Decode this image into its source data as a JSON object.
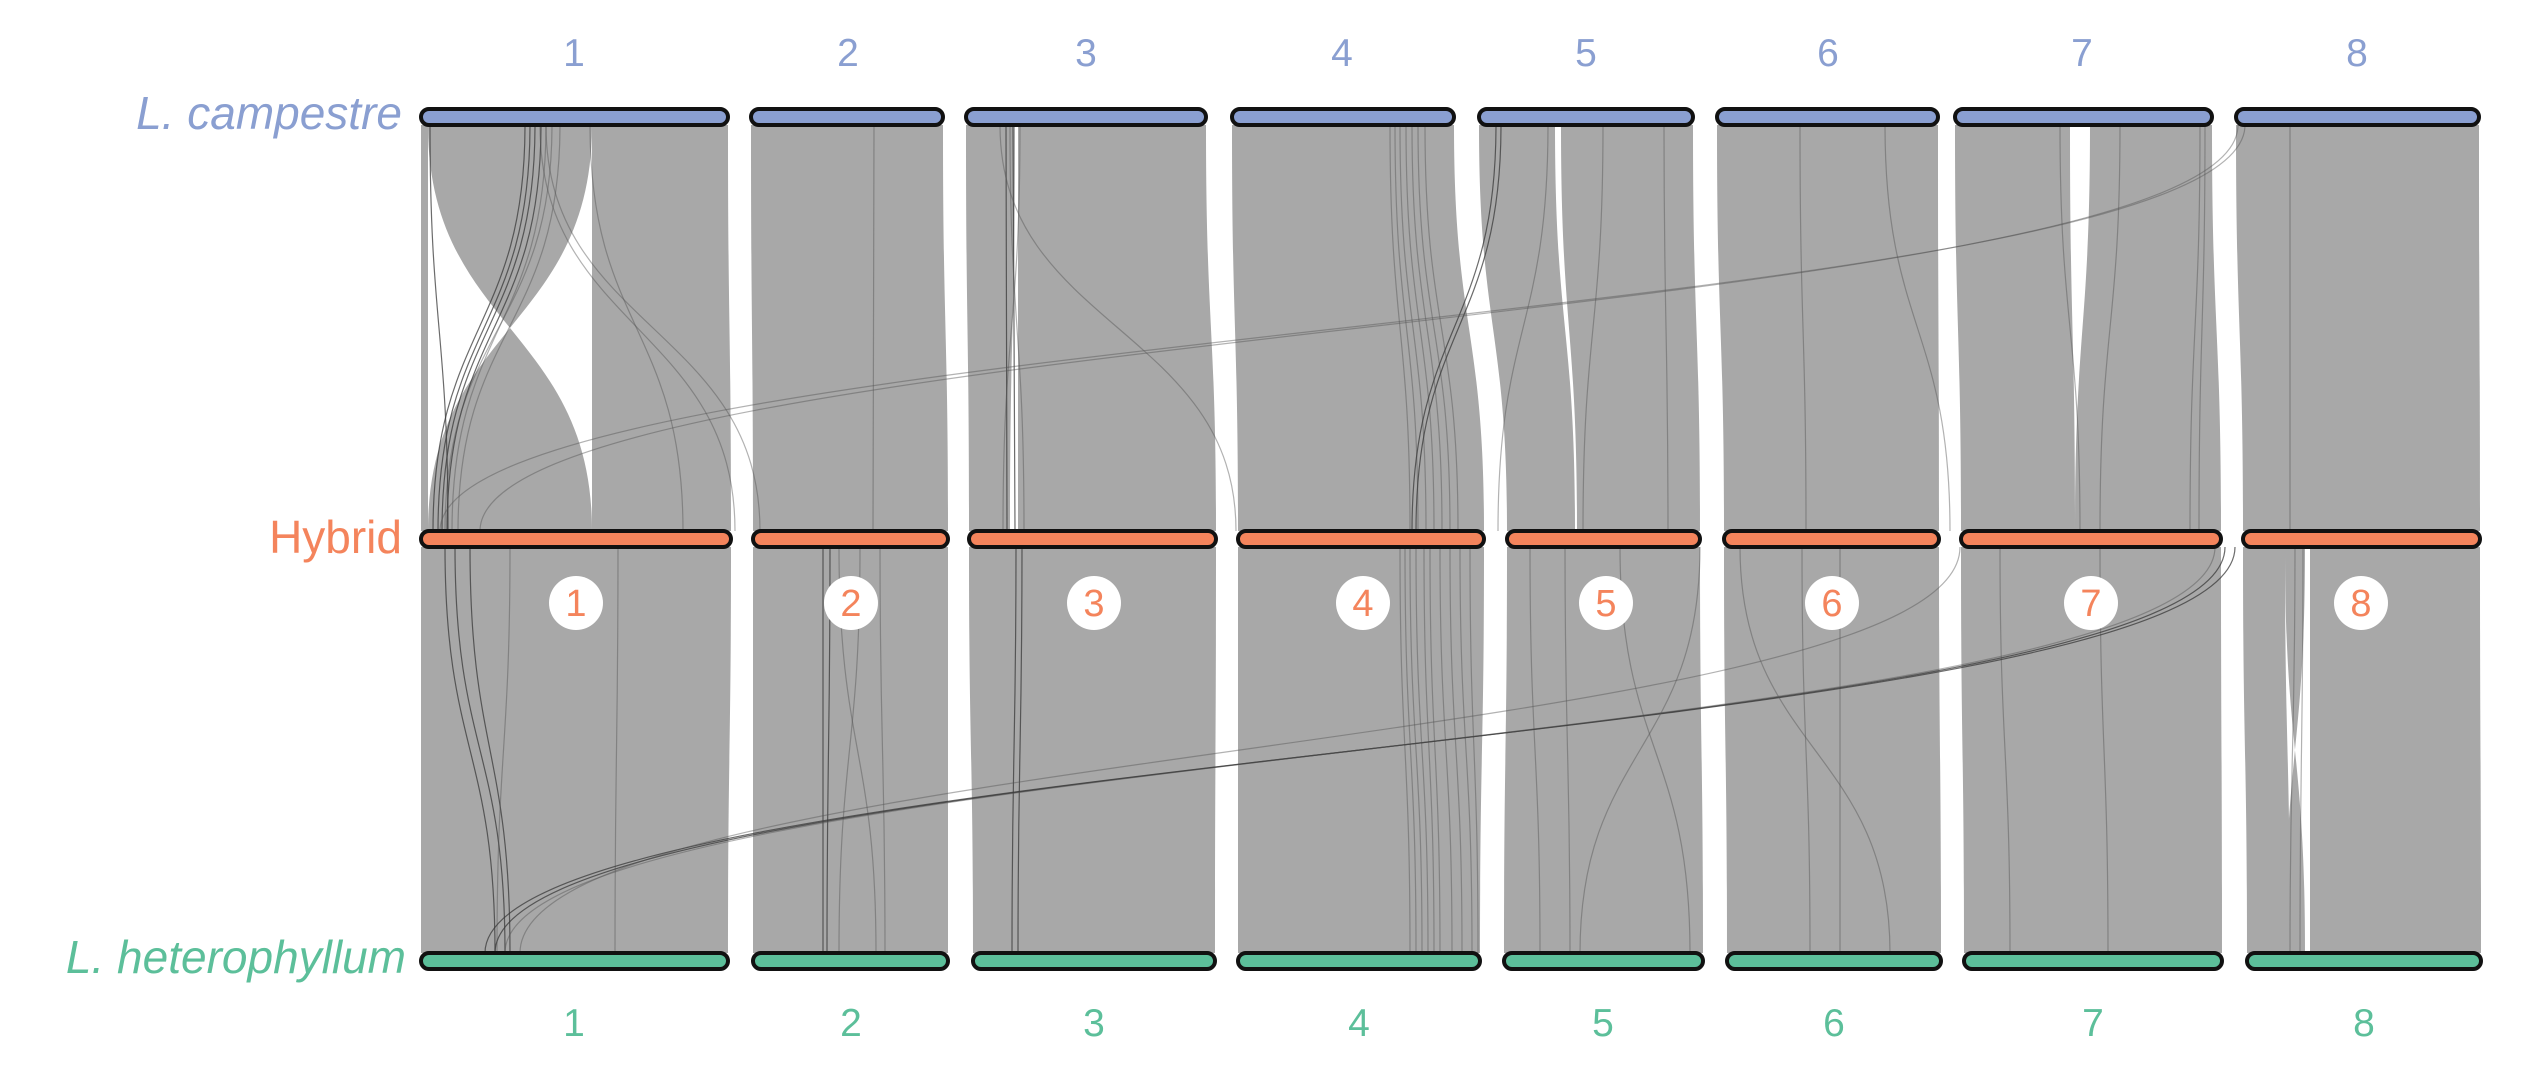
{
  "genomes": {
    "top": {
      "label": "L. campestre",
      "italic": true,
      "color": "#8a9fd1"
    },
    "middle": {
      "label": "Hybrid",
      "italic": false,
      "color": "#f4845c"
    },
    "bottom": {
      "label": "L. heterophyllum",
      "italic": true,
      "color": "#5cbf9a"
    }
  },
  "top_chromosomes": [
    "1",
    "2",
    "3",
    "4",
    "5",
    "6",
    "7",
    "8"
  ],
  "middle_chromosomes": [
    "1",
    "2",
    "3",
    "4",
    "5",
    "6",
    "7",
    "8"
  ],
  "bottom_chromosomes": [
    "1",
    "2",
    "3",
    "4",
    "5",
    "6",
    "7",
    "8"
  ],
  "colors": {
    "block_fill": "#a8a8a8",
    "link_line": "#3a3a3a",
    "bar_outline": "#111111",
    "badge_fill": "#ffffff"
  }
}
